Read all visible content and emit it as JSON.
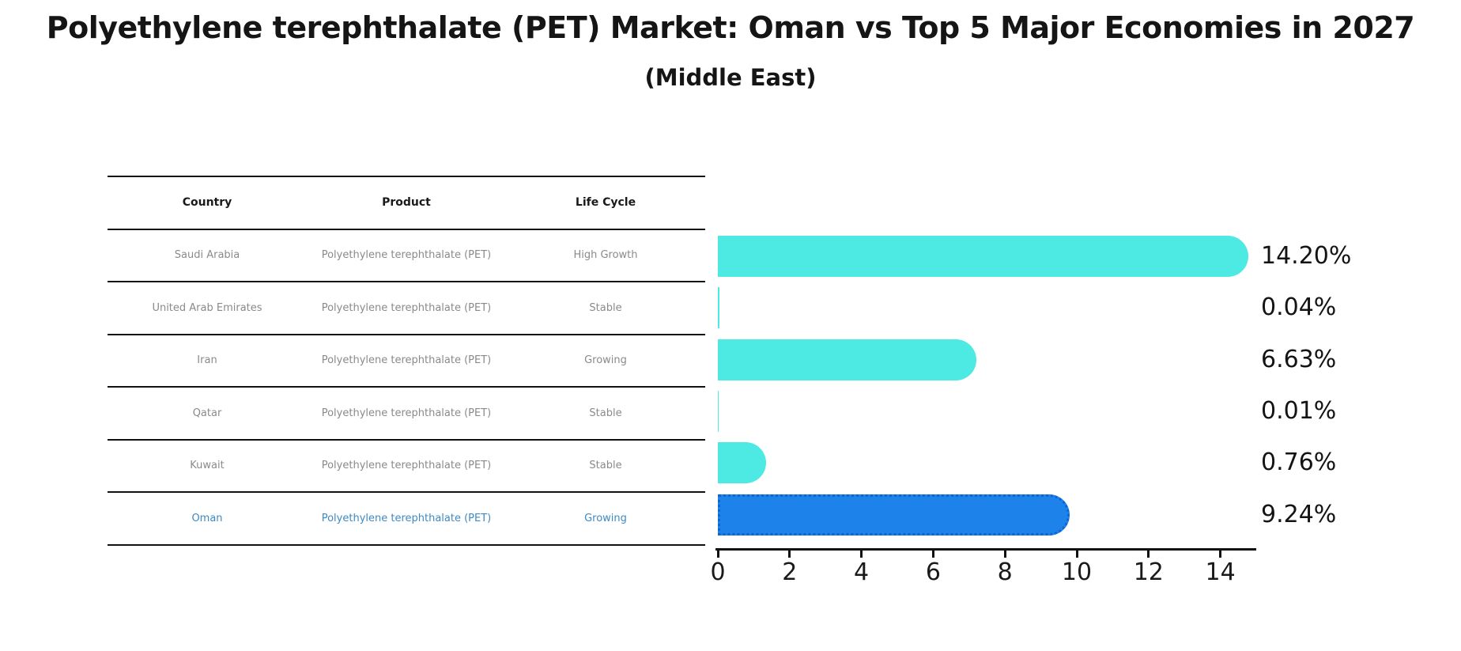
{
  "title": "Polyethylene terephthalate (PET) Market: Oman vs Top 5 Major Economies in 2027",
  "subtitle": "(Middle East)",
  "table": {
    "headers": [
      "Country",
      "Product",
      "Life Cycle"
    ],
    "rows": [
      {
        "country": "Saudi Arabia",
        "product": "Polyethylene terephthalate (PET)",
        "life_cycle": "High Growth",
        "highlight": false
      },
      {
        "country": "United Arab Emirates",
        "product": "Polyethylene terephthalate (PET)",
        "life_cycle": "Stable",
        "highlight": false
      },
      {
        "country": "Iran",
        "product": "Polyethylene terephthalate (PET)",
        "life_cycle": "Growing",
        "highlight": false
      },
      {
        "country": "Qatar",
        "product": "Polyethylene terephthalate (PET)",
        "life_cycle": "Stable",
        "highlight": false
      },
      {
        "country": "Kuwait",
        "product": "Polyethylene terephthalate (PET)",
        "life_cycle": "Stable",
        "highlight": false
      },
      {
        "country": "Oman",
        "product": "Polyethylene terephthalate (PET)",
        "life_cycle": "Growing",
        "highlight": true
      }
    ]
  },
  "chart_data": {
    "type": "bar",
    "orientation": "horizontal",
    "categories": [
      "Saudi Arabia",
      "United Arab Emirates",
      "Iran",
      "Qatar",
      "Kuwait",
      "Oman"
    ],
    "values": [
      14.2,
      0.04,
      6.63,
      0.01,
      0.76,
      9.24
    ],
    "value_labels": [
      "14.20%",
      "0.04%",
      "6.63%",
      "0.01%",
      "0.76%",
      "9.24%"
    ],
    "xticks": [
      0,
      2,
      4,
      6,
      8,
      10,
      12,
      14
    ],
    "xlim": [
      0,
      15
    ],
    "grid": false,
    "legend": "none",
    "bar_color": "#4de9e3",
    "highlight_index": 5,
    "highlight_bar_color": "#1e82eb",
    "highlight_border_color": "#0d64d2",
    "highlight_text_color": "#3d8ac4",
    "label_color": "#141414"
  }
}
